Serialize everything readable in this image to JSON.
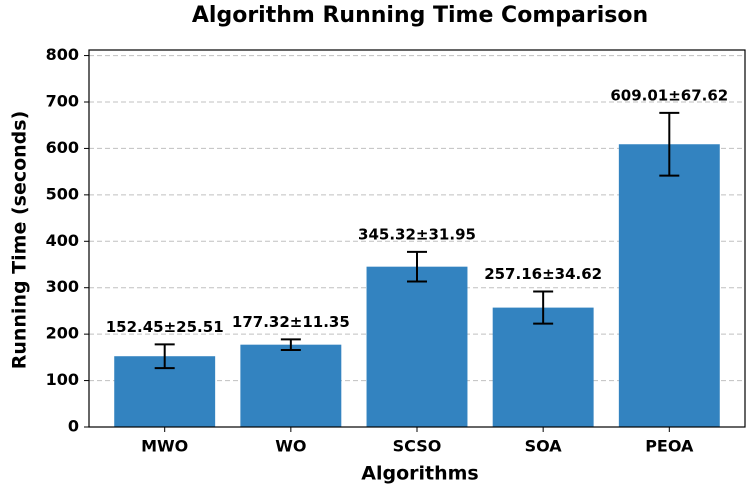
{
  "chart_data": {
    "type": "bar",
    "title": "Algorithm Running Time Comparison",
    "xlabel": "Algorithms",
    "ylabel": "Running Time (seconds)",
    "categories": [
      "MWO",
      "WO",
      "SCSO",
      "SOA",
      "PEOA"
    ],
    "values": [
      152.45,
      177.32,
      345.32,
      257.16,
      609.01
    ],
    "errors": [
      25.51,
      11.35,
      31.95,
      34.62,
      67.62
    ],
    "value_labels": [
      "152.45±25.51",
      "177.32±11.35",
      "345.32±31.95",
      "257.16±34.62",
      "609.01±67.62"
    ],
    "color": "#3383c0",
    "ylim": [
      0,
      812
    ],
    "yticks": [
      0,
      100,
      200,
      300,
      400,
      500,
      600,
      700,
      800
    ],
    "grid": true
  }
}
